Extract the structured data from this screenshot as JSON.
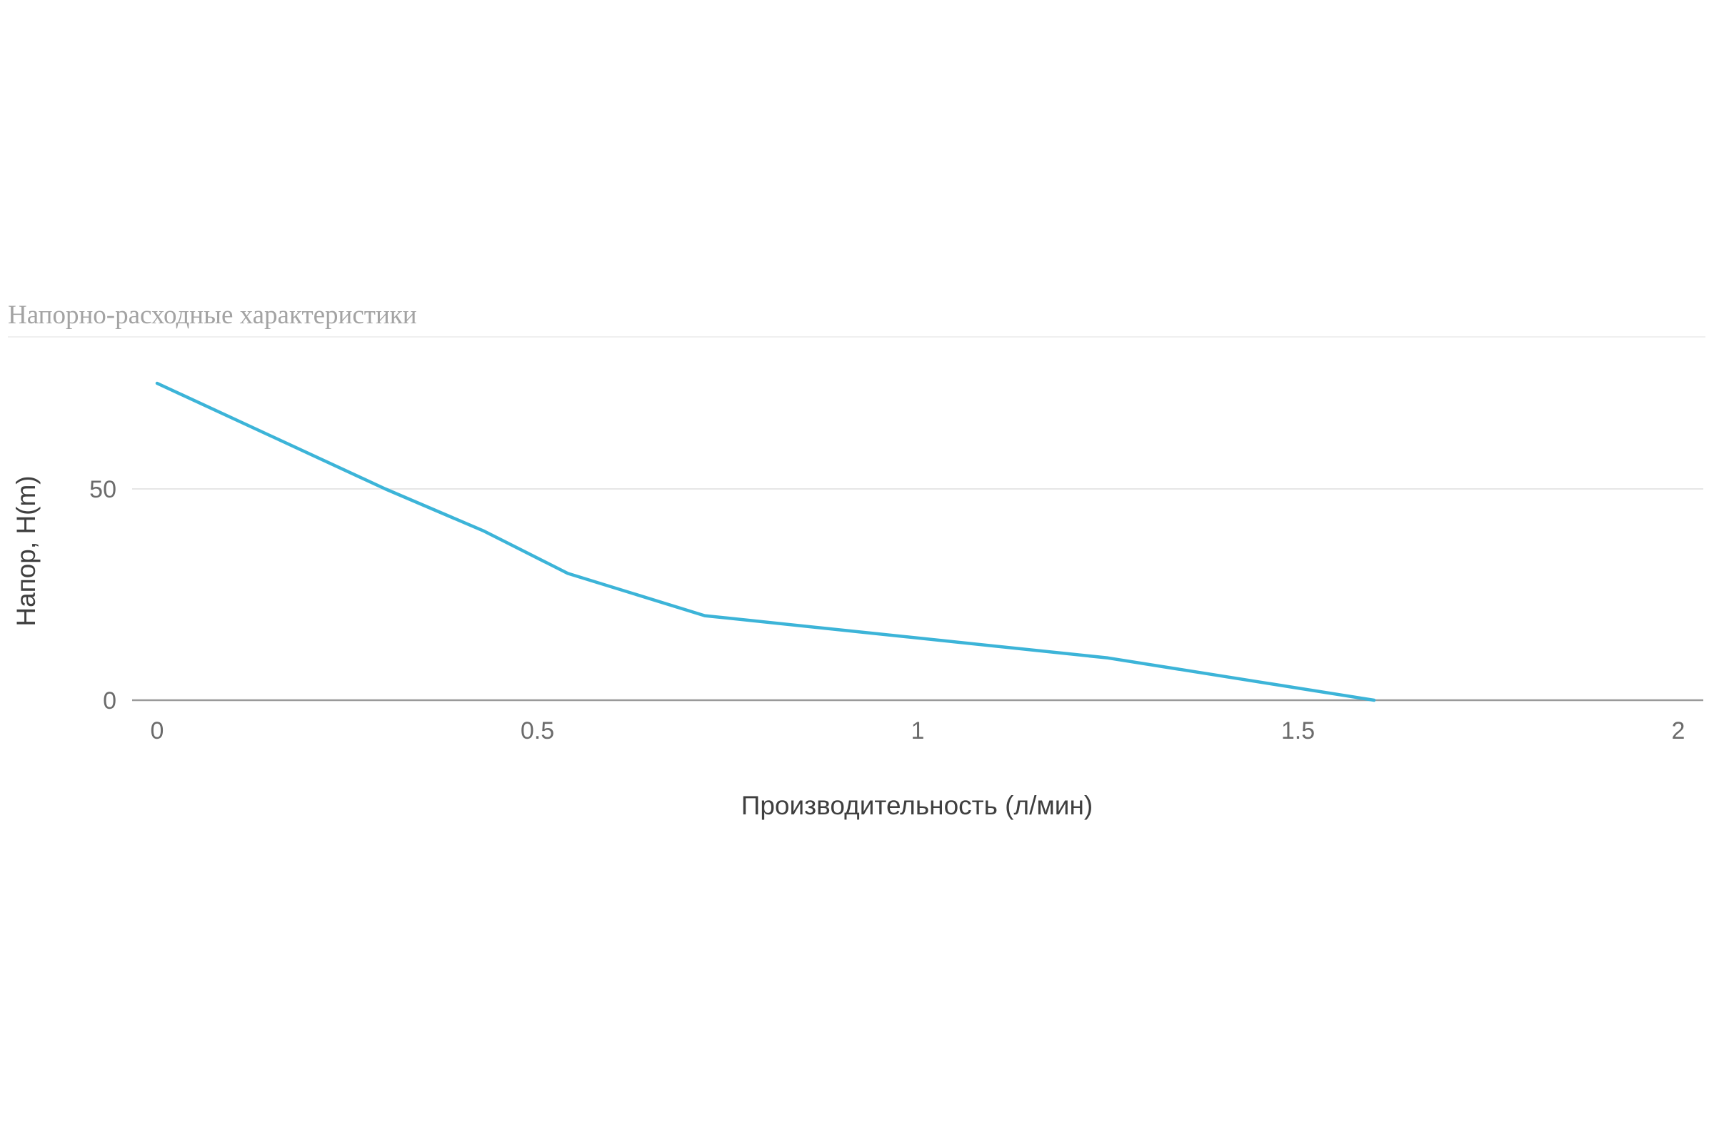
{
  "chart_data": {
    "type": "line",
    "title": "Напорно-расходные характеристики",
    "xlabel": "Производительность (л/мин)",
    "ylabel": "Напор, H(m)",
    "xlim": [
      0,
      2
    ],
    "ylim": [
      0,
      75
    ],
    "x_ticks": [
      "0",
      "0.5",
      "1",
      "1.5",
      "2"
    ],
    "y_ticks": [
      "0",
      "50"
    ],
    "grid": true,
    "legend": "none",
    "series": [
      {
        "color": "#3cb4d8",
        "points": [
          {
            "x": 0,
            "y": 75
          },
          {
            "x": 0.3,
            "y": 50
          },
          {
            "x": 0.43,
            "y": 40
          },
          {
            "x": 0.54,
            "y": 30
          },
          {
            "x": 0.72,
            "y": 20
          },
          {
            "x": 1.25,
            "y": 10
          },
          {
            "x": 1.6,
            "y": 0
          }
        ]
      }
    ],
    "colors": {
      "line": "#3cb4d8",
      "gridline": "#e6e6e6",
      "baseline": "#9a9a9a",
      "title": "#a3a3a3"
    }
  }
}
